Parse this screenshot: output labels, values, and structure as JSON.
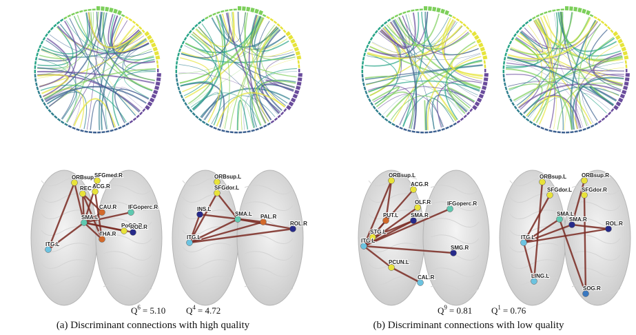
{
  "panels": [
    {
      "caption": "(a) Discriminant connections with high quality",
      "brains": [
        {
          "quality": {
            "base": "Q",
            "sup": "6",
            "rest": "= 5.10"
          },
          "nodes": [
            {
              "label": "ORBsup.L",
              "color": "#e8e23a"
            },
            {
              "label": "REC",
              "color": "#e8e23a"
            },
            {
              "label": "SFGmed.R",
              "color": "#e8e23a"
            },
            {
              "label": "ACG.R",
              "color": "#e8e23a"
            },
            {
              "label": "CAU.R",
              "color": "#d2692a"
            },
            {
              "label": "IFGoperc.R",
              "color": "#5fc9b0"
            },
            {
              "label": "SMA.L",
              "color": "#5fc9b0"
            },
            {
              "label": "PoCG.R",
              "color": "#e8e23a"
            },
            {
              "label": "ROL.R",
              "color": "#262a8a"
            },
            {
              "label": "THA.R",
              "color": "#d2692a"
            },
            {
              "label": "ITG.L",
              "color": "#6cc3e0"
            }
          ]
        },
        {
          "quality": {
            "base": "Q",
            "sup": "4",
            "rest": "= 4.72"
          },
          "nodes": [
            {
              "label": "ORBsup.L",
              "color": "#e8e23a"
            },
            {
              "label": "SFGdor.L",
              "color": "#e8e23a"
            },
            {
              "label": "INS.L",
              "color": "#262a8a"
            },
            {
              "label": "SMA.L",
              "color": "#5fc9b0"
            },
            {
              "label": "PAL.R",
              "color": "#d2692a"
            },
            {
              "label": "ROL.R",
              "color": "#262a8a"
            },
            {
              "label": "ITG.L",
              "color": "#6cc3e0"
            }
          ]
        }
      ]
    },
    {
      "caption": "(b) Discriminant connections with low quality",
      "brains": [
        {
          "quality": {
            "base": "Q",
            "sup": "9",
            "rest": "= 0.81"
          },
          "nodes": [
            {
              "label": "ORBsup.L",
              "color": "#e8e23a"
            },
            {
              "label": "ACG.R",
              "color": "#e8e23a"
            },
            {
              "label": "PUT.L",
              "color": "#d2692a"
            },
            {
              "label": "OLF.R",
              "color": "#e8e23a"
            },
            {
              "label": "IFGoperc.R",
              "color": "#5fc9b0"
            },
            {
              "label": "SMA.R",
              "color": "#262a8a"
            },
            {
              "label": "STG.L",
              "color": "#e8e23a"
            },
            {
              "label": "ITG.L",
              "color": "#6cc3e0"
            },
            {
              "label": "SMG.R",
              "color": "#262a8a"
            },
            {
              "label": "PCUN.L",
              "color": "#e8e23a"
            },
            {
              "label": "CAL.R",
              "color": "#6cc3e0"
            }
          ]
        },
        {
          "quality": {
            "base": "Q",
            "sup": "1",
            "rest": "= 0.76"
          },
          "nodes": [
            {
              "label": "ORBsup.L",
              "color": "#e8e23a"
            },
            {
              "label": "ORBsup.R",
              "color": "#e8e23a"
            },
            {
              "label": "SFGdor.L",
              "color": "#e8e23a"
            },
            {
              "label": "SFGdor.R",
              "color": "#e8e23a"
            },
            {
              "label": "SMA.L",
              "color": "#5fc9b0"
            },
            {
              "label": "SMA.R",
              "color": "#262a8a"
            },
            {
              "label": "ROL.R",
              "color": "#262a8a"
            },
            {
              "label": "ITG.L",
              "color": "#6cc3e0"
            },
            {
              "label": "LING.L",
              "color": "#6cc3e0"
            },
            {
              "label": "SOG.R",
              "color": "#3a78c0"
            }
          ]
        }
      ]
    }
  ]
}
